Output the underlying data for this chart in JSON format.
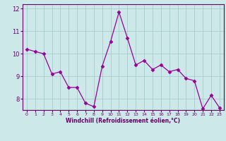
{
  "x": [
    0,
    1,
    2,
    3,
    4,
    5,
    6,
    7,
    8,
    9,
    10,
    11,
    12,
    13,
    14,
    15,
    16,
    17,
    18,
    19,
    20,
    21,
    22,
    23
  ],
  "y": [
    10.2,
    10.1,
    10.0,
    9.1,
    9.2,
    8.5,
    8.5,
    7.8,
    7.65,
    9.45,
    10.55,
    11.85,
    10.7,
    9.5,
    9.7,
    9.3,
    9.5,
    9.2,
    9.3,
    8.9,
    8.8,
    7.55,
    8.15,
    7.6
  ],
  "line_color": "#990099",
  "marker": "D",
  "marker_size": 2.5,
  "bg_color": "#cce8e8",
  "grid_color": "#aacccc",
  "xlabel": "Windchill (Refroidissement éolien,°C)",
  "xlabel_color": "#660066",
  "tick_color": "#660066",
  "ylim": [
    7.5,
    12.2
  ],
  "yticks": [
    8,
    9,
    10,
    11,
    12
  ],
  "xticks": [
    0,
    1,
    2,
    3,
    4,
    5,
    6,
    7,
    8,
    9,
    10,
    11,
    12,
    13,
    14,
    15,
    16,
    17,
    18,
    19,
    20,
    21,
    22,
    23
  ],
  "spine_color": "#660066"
}
